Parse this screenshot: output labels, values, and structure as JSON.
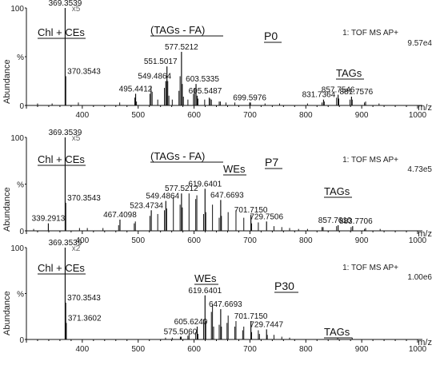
{
  "chart_data": [
    {
      "type": "line",
      "panel": "P0",
      "xlim": [
        300,
        1000
      ],
      "ylim": [
        0,
        100
      ],
      "x_ticks": [
        "400",
        "500",
        "600",
        "700",
        "800",
        "900",
        "1000"
      ],
      "y_tick_labels": [
        "100",
        "%",
        "0"
      ],
      "xlabel": "m/z",
      "ylabel": "Abundance",
      "scale_marker": "x5",
      "scale_marker_mz": 387,
      "info_line1": "1: TOF MS AP+",
      "info_line2": "9.57e4",
      "group_labels": [
        "Chl + CEs",
        "(TAGs - FA)",
        "P0",
        "TAGs"
      ],
      "peaks": [
        {
          "mz": 369.3539,
          "intensity": 100
        },
        {
          "mz": 370.3543,
          "intensity": 30
        },
        {
          "mz": 495.4412,
          "intensity": 12
        },
        {
          "mz": 549.4864,
          "intensity": 25
        },
        {
          "mz": 551.5017,
          "intensity": 40
        },
        {
          "mz": 577.5212,
          "intensity": 55
        },
        {
          "mz": 603.5335,
          "intensity": 22
        },
        {
          "mz": 605.5487,
          "intensity": 10
        },
        {
          "mz": 699.5976,
          "intensity": 3
        },
        {
          "mz": 831.7364,
          "intensity": 6
        },
        {
          "mz": 857.7546,
          "intensity": 11
        },
        {
          "mz": 881.7576,
          "intensity": 9
        }
      ],
      "minor_peaks": [
        {
          "mz": 320,
          "intensity": 2
        },
        {
          "mz": 346,
          "intensity": 2
        },
        {
          "mz": 393,
          "intensity": 3
        },
        {
          "mz": 467,
          "intensity": 3
        },
        {
          "mz": 494,
          "intensity": 8
        },
        {
          "mz": 497,
          "intensity": 4
        },
        {
          "mz": 521,
          "intensity": 12
        },
        {
          "mz": 523,
          "intensity": 20
        },
        {
          "mz": 525,
          "intensity": 14
        },
        {
          "mz": 535,
          "intensity": 6
        },
        {
          "mz": 547,
          "intensity": 18
        },
        {
          "mz": 553,
          "intensity": 25
        },
        {
          "mz": 555,
          "intensity": 10
        },
        {
          "mz": 561,
          "intensity": 6
        },
        {
          "mz": 573,
          "intensity": 15
        },
        {
          "mz": 575,
          "intensity": 30
        },
        {
          "mz": 579,
          "intensity": 22
        },
        {
          "mz": 581,
          "intensity": 9
        },
        {
          "mz": 589,
          "intensity": 6
        },
        {
          "mz": 599,
          "intensity": 12
        },
        {
          "mz": 601,
          "intensity": 18
        },
        {
          "mz": 607,
          "intensity": 7
        },
        {
          "mz": 619,
          "intensity": 6
        },
        {
          "mz": 627,
          "intensity": 8
        },
        {
          "mz": 629,
          "intensity": 7
        },
        {
          "mz": 631,
          "intensity": 6
        },
        {
          "mz": 645,
          "intensity": 4
        },
        {
          "mz": 647,
          "intensity": 4
        },
        {
          "mz": 657,
          "intensity": 3
        },
        {
          "mz": 673,
          "intensity": 3
        },
        {
          "mz": 701,
          "intensity": 3
        },
        {
          "mz": 727,
          "intensity": 2
        },
        {
          "mz": 753,
          "intensity": 2
        },
        {
          "mz": 803,
          "intensity": 2
        },
        {
          "mz": 829,
          "intensity": 3
        },
        {
          "mz": 833,
          "intensity": 4
        },
        {
          "mz": 855,
          "intensity": 8
        },
        {
          "mz": 859,
          "intensity": 7
        },
        {
          "mz": 879,
          "intensity": 6
        },
        {
          "mz": 883,
          "intensity": 6
        },
        {
          "mz": 905,
          "intensity": 3
        },
        {
          "mz": 907,
          "intensity": 4
        },
        {
          "mz": 931,
          "intensity": 2
        }
      ]
    },
    {
      "type": "line",
      "panel": "P7",
      "xlim": [
        300,
        1000
      ],
      "ylim": [
        0,
        100
      ],
      "x_ticks": [
        "400",
        "500",
        "600",
        "700",
        "800",
        "900",
        "1000"
      ],
      "y_tick_labels": [
        "100",
        "%",
        "0"
      ],
      "xlabel": "m/z",
      "ylabel": "Abundance",
      "scale_marker": "x5",
      "scale_marker_mz": 387,
      "info_line1": "1: TOF MS AP+",
      "info_line2": "4.73e5",
      "group_labels": [
        "Chl + CEs",
        "(TAGs - FA)",
        "WEs",
        "P7",
        "TAGs"
      ],
      "peaks": [
        {
          "mz": 339.2913,
          "intensity": 8
        },
        {
          "mz": 369.3539,
          "intensity": 100
        },
        {
          "mz": 370.3543,
          "intensity": 30
        },
        {
          "mz": 467.4098,
          "intensity": 12
        },
        {
          "mz": 523.4734,
          "intensity": 22
        },
        {
          "mz": 549.4864,
          "intensity": 32
        },
        {
          "mz": 577.5212,
          "intensity": 40
        },
        {
          "mz": 619.6401,
          "intensity": 45
        },
        {
          "mz": 647.6693,
          "intensity": 33
        },
        {
          "mz": 701.715,
          "intensity": 17
        },
        {
          "mz": 729.7506,
          "intensity": 10
        },
        {
          "mz": 857.761,
          "intensity": 6
        },
        {
          "mz": 883.7706,
          "intensity": 5
        }
      ],
      "minor_peaks": [
        {
          "mz": 313,
          "intensity": 2
        },
        {
          "mz": 395,
          "intensity": 3
        },
        {
          "mz": 409,
          "intensity": 3
        },
        {
          "mz": 437,
          "intensity": 3
        },
        {
          "mz": 465,
          "intensity": 6
        },
        {
          "mz": 493,
          "intensity": 8
        },
        {
          "mz": 495,
          "intensity": 10
        },
        {
          "mz": 521,
          "intensity": 16
        },
        {
          "mz": 535,
          "intensity": 18
        },
        {
          "mz": 547,
          "intensity": 22
        },
        {
          "mz": 551,
          "intensity": 24
        },
        {
          "mz": 563,
          "intensity": 36
        },
        {
          "mz": 575,
          "intensity": 28
        },
        {
          "mz": 579,
          "intensity": 25
        },
        {
          "mz": 591,
          "intensity": 40
        },
        {
          "mz": 603,
          "intensity": 34
        },
        {
          "mz": 605,
          "intensity": 38
        },
        {
          "mz": 617,
          "intensity": 18
        },
        {
          "mz": 621,
          "intensity": 20
        },
        {
          "mz": 633,
          "intensity": 28
        },
        {
          "mz": 645,
          "intensity": 14
        },
        {
          "mz": 649,
          "intensity": 16
        },
        {
          "mz": 661,
          "intensity": 20
        },
        {
          "mz": 675,
          "intensity": 22
        },
        {
          "mz": 689,
          "intensity": 14
        },
        {
          "mz": 703,
          "intensity": 8
        },
        {
          "mz": 715,
          "intensity": 9
        },
        {
          "mz": 743,
          "intensity": 5
        },
        {
          "mz": 757,
          "intensity": 4
        },
        {
          "mz": 771,
          "intensity": 3
        },
        {
          "mz": 787,
          "intensity": 2
        },
        {
          "mz": 803,
          "intensity": 2
        },
        {
          "mz": 829,
          "intensity": 4
        },
        {
          "mz": 831,
          "intensity": 4
        },
        {
          "mz": 855,
          "intensity": 5
        },
        {
          "mz": 881,
          "intensity": 4
        },
        {
          "mz": 905,
          "intensity": 2
        },
        {
          "mz": 907,
          "intensity": 3
        },
        {
          "mz": 933,
          "intensity": 2
        }
      ]
    },
    {
      "type": "line",
      "panel": "P30",
      "xlim": [
        300,
        1000
      ],
      "ylim": [
        0,
        100
      ],
      "x_ticks": [
        "400",
        "500",
        "600",
        "700",
        "800",
        "900",
        "1000"
      ],
      "y_tick_labels": [
        "100",
        "%",
        "0"
      ],
      "xlabel": "m/z",
      "ylabel": "Abundance",
      "scale_marker": "x2",
      "scale_marker_mz": 387,
      "info_line1": "1: TOF MS AP+",
      "info_line2": "1.00e6",
      "group_labels": [
        "Chl + CEs",
        "WEs",
        "P30",
        "TAGs"
      ],
      "peaks": [
        {
          "mz": 369.3539,
          "intensity": 100
        },
        {
          "mz": 370.3543,
          "intensity": 40
        },
        {
          "mz": 371.3602,
          "intensity": 18
        },
        {
          "mz": 575.506,
          "intensity": 3
        },
        {
          "mz": 605.624,
          "intensity": 14
        },
        {
          "mz": 619.6401,
          "intensity": 48
        },
        {
          "mz": 647.6693,
          "intensity": 33
        },
        {
          "mz": 701.715,
          "intensity": 20
        },
        {
          "mz": 729.7447,
          "intensity": 11
        }
      ],
      "minor_peaks": [
        {
          "mz": 549,
          "intensity": 2
        },
        {
          "mz": 561,
          "intensity": 2
        },
        {
          "mz": 577,
          "intensity": 3
        },
        {
          "mz": 589,
          "intensity": 4
        },
        {
          "mz": 591,
          "intensity": 6
        },
        {
          "mz": 603,
          "intensity": 8
        },
        {
          "mz": 607,
          "intensity": 6
        },
        {
          "mz": 617,
          "intensity": 22
        },
        {
          "mz": 621,
          "intensity": 20
        },
        {
          "mz": 631,
          "intensity": 30
        },
        {
          "mz": 633,
          "intensity": 38
        },
        {
          "mz": 635,
          "intensity": 14
        },
        {
          "mz": 645,
          "intensity": 16
        },
        {
          "mz": 649,
          "intensity": 14
        },
        {
          "mz": 659,
          "intensity": 18
        },
        {
          "mz": 661,
          "intensity": 26
        },
        {
          "mz": 673,
          "intensity": 14
        },
        {
          "mz": 675,
          "intensity": 20
        },
        {
          "mz": 687,
          "intensity": 10
        },
        {
          "mz": 689,
          "intensity": 14
        },
        {
          "mz": 703,
          "intensity": 8
        },
        {
          "mz": 715,
          "intensity": 10
        },
        {
          "mz": 717,
          "intensity": 6
        },
        {
          "mz": 731,
          "intensity": 5
        },
        {
          "mz": 743,
          "intensity": 5
        },
        {
          "mz": 757,
          "intensity": 3
        },
        {
          "mz": 771,
          "intensity": 2
        },
        {
          "mz": 857,
          "intensity": 2
        },
        {
          "mz": 883,
          "intensity": 2
        }
      ]
    }
  ]
}
